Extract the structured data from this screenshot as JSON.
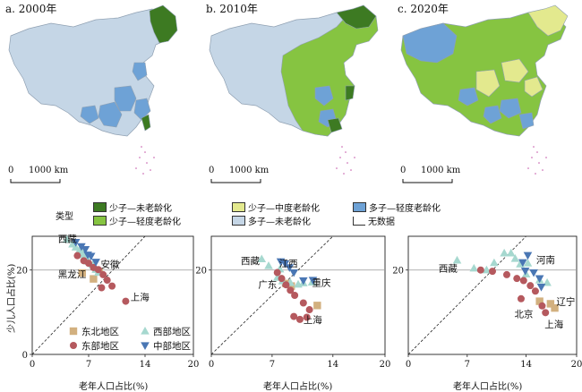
{
  "maps": [
    {
      "title": "a. 2000年",
      "scale_zero": "0",
      "scale_label": "1000 km"
    },
    {
      "title": "b. 2010年",
      "scale_zero": "0",
      "scale_label": "1000 km"
    },
    {
      "title": "c. 2020年",
      "scale_zero": "0",
      "scale_label": "1000 km"
    }
  ],
  "legend": {
    "title": "类型",
    "items": [
      {
        "label": "少子—未老龄化",
        "color": "#3d7a22"
      },
      {
        "label": "少子—轻度老龄化",
        "color": "#86c441"
      },
      {
        "label": "少子—中度老龄化",
        "color": "#e3e98e"
      },
      {
        "label": "多子—未老龄化",
        "color": "#c5d6e6"
      },
      {
        "label": "多子—轻度老龄化",
        "color": "#6ea2d6"
      },
      {
        "label": "无数据",
        "color": "#ffffff"
      }
    ]
  },
  "colors": {
    "northeast": "#d2b07f",
    "east": "#b5595e",
    "west": "#a6d8cf",
    "central": "#4a77b4",
    "map_border": "#9aa8b8"
  },
  "chart_data": [
    {
      "type": "scatter",
      "xlabel": "老年人口占比(%)",
      "ylabel": "少儿人口占比(%)",
      "xlim": [
        0,
        20
      ],
      "ylim": [
        0,
        28
      ],
      "xticks": [
        "0",
        "7",
        "14",
        "20"
      ],
      "yticks": [
        "0",
        "20"
      ],
      "legend_entries": [
        "东北地区",
        "西部地区",
        "东部地区",
        "中部地区"
      ],
      "annotations": [
        "西藏",
        "安徽",
        "黑龙江",
        "上海"
      ],
      "series": [
        {
          "name": "东北地区",
          "points": [
            [
              6.2,
              19.3
            ],
            [
              7.6,
              17.9
            ],
            [
              8.3,
              19.6
            ]
          ]
        },
        {
          "name": "西部地区",
          "points": [
            [
              4.3,
              27.2
            ],
            [
              5.0,
              26.1
            ],
            [
              5.4,
              25.4
            ],
            [
              5.8,
              24.5
            ],
            [
              6.3,
              23.6
            ],
            [
              6.6,
              22.9
            ],
            [
              7.0,
              22.0
            ],
            [
              7.5,
              21.2
            ],
            [
              6.2,
              24.8
            ],
            [
              7.9,
              20.1
            ],
            [
              8.2,
              19.4
            ]
          ]
        },
        {
          "name": "东部地区",
          "points": [
            [
              5.6,
              23.4
            ],
            [
              6.4,
              22.2
            ],
            [
              7.0,
              21.6
            ],
            [
              7.6,
              20.6
            ],
            [
              8.2,
              20.1
            ],
            [
              8.8,
              18.9
            ],
            [
              9.3,
              17.6
            ],
            [
              9.9,
              16.2
            ],
            [
              8.6,
              15.8
            ],
            [
              11.6,
              12.6
            ]
          ]
        },
        {
          "name": "中部地区",
          "points": [
            [
              5.4,
              26.6
            ],
            [
              6.1,
              25.6
            ],
            [
              6.6,
              24.9
            ],
            [
              7.3,
              23.3
            ],
            [
              7.9,
              21.9
            ],
            [
              6.9,
              23.6
            ]
          ]
        }
      ]
    },
    {
      "type": "scatter",
      "xlabel": "老年人口占比(%)",
      "ylabel": "",
      "xlim": [
        0,
        20
      ],
      "ylim": [
        0,
        28
      ],
      "xticks": [
        "0",
        "7",
        "14",
        "20"
      ],
      "yticks": [
        "20"
      ],
      "annotations": [
        "西藏",
        "江西",
        "广东",
        "重庆",
        "上海"
      ],
      "series": [
        {
          "name": "东北地区",
          "points": [
            [
              8.6,
              16.8
            ],
            [
              9.2,
              16.2
            ],
            [
              12.2,
              11.6
            ]
          ]
        },
        {
          "name": "西部地区",
          "points": [
            [
              5.8,
              22.6
            ],
            [
              6.6,
              21.0
            ],
            [
              7.6,
              18.2
            ],
            [
              8.2,
              17.4
            ],
            [
              9.1,
              17.0
            ],
            [
              10.0,
              16.6
            ],
            [
              10.6,
              16.9
            ],
            [
              11.6,
              17.1
            ],
            [
              7.9,
              20.2
            ]
          ]
        },
        {
          "name": "东部地区",
          "points": [
            [
              7.6,
              19.4
            ],
            [
              8.1,
              18.0
            ],
            [
              8.6,
              16.5
            ],
            [
              9.1,
              15.2
            ],
            [
              9.6,
              14.0
            ],
            [
              10.6,
              12.2
            ],
            [
              11.3,
              10.6
            ],
            [
              9.5,
              9.0
            ],
            [
              10.2,
              8.3
            ],
            [
              11.0,
              8.8
            ]
          ]
        },
        {
          "name": "中部地区",
          "points": [
            [
              8.0,
              22.0
            ],
            [
              8.5,
              21.5
            ],
            [
              9.0,
              20.6
            ],
            [
              9.5,
              19.4
            ],
            [
              10.6,
              17.5
            ],
            [
              11.7,
              17.6
            ]
          ]
        }
      ]
    },
    {
      "type": "scatter",
      "xlabel": "老年人口占比(%)",
      "ylabel": "",
      "xlim": [
        0,
        20
      ],
      "ylim": [
        0,
        28
      ],
      "xticks": [
        "0",
        "7",
        "14",
        "20"
      ],
      "yticks": [
        "20"
      ],
      "annotations": [
        "西藏",
        "河南",
        "北京",
        "辽宁",
        "上海"
      ],
      "series": [
        {
          "name": "东北地区",
          "points": [
            [
              15.6,
              12.6
            ],
            [
              16.9,
              12.0
            ],
            [
              17.4,
              11.0
            ]
          ]
        },
        {
          "name": "西部地区",
          "points": [
            [
              5.8,
              22.3
            ],
            [
              7.8,
              20.4
            ],
            [
              9.3,
              20.0
            ],
            [
              10.2,
              21.7
            ],
            [
              11.4,
              24.0
            ],
            [
              12.2,
              24.0
            ],
            [
              12.7,
              22.7
            ],
            [
              13.3,
              21.4
            ],
            [
              14.2,
              21.6
            ],
            [
              15.6,
              17.6
            ],
            [
              16.5,
              17.0
            ],
            [
              14.0,
              19.0
            ]
          ]
        },
        {
          "name": "东部地区",
          "points": [
            [
              8.6,
              20.0
            ],
            [
              10.0,
              19.7
            ],
            [
              11.7,
              18.9
            ],
            [
              12.9,
              18.0
            ],
            [
              13.7,
              17.5
            ],
            [
              14.5,
              16.3
            ],
            [
              15.1,
              15.0
            ],
            [
              13.4,
              13.2
            ],
            [
              15.9,
              11.5
            ],
            [
              16.3,
              9.9
            ]
          ]
        },
        {
          "name": "中部地区",
          "points": [
            [
              13.6,
              21.8
            ],
            [
              14.2,
              23.5
            ],
            [
              14.9,
              19.4
            ],
            [
              15.6,
              18.0
            ],
            [
              13.9,
              19.8
            ],
            [
              15.8,
              16.0
            ]
          ]
        }
      ]
    }
  ]
}
